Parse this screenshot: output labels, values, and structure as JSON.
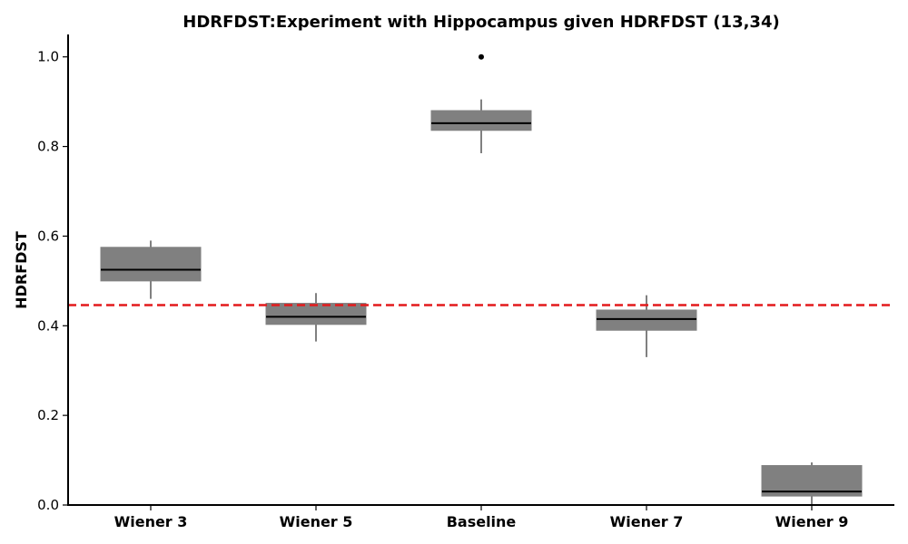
{
  "chart_data": {
    "type": "box",
    "title": "HDRFDST:Experiment with Hippocampus given HDRFDST (13,34)",
    "xlabel": "",
    "ylabel": "HDRFDST",
    "ylim": [
      0.0,
      1.05
    ],
    "yticks": [
      0.0,
      0.2,
      0.4,
      0.6,
      0.8,
      1.0
    ],
    "ytick_labels": [
      "0.0",
      "0.2",
      "0.4",
      "0.6",
      "0.8",
      "1.0"
    ],
    "categories": [
      "Wiener 3",
      "Wiener 5",
      "Baseline",
      "Wiener 7",
      "Wiener 9"
    ],
    "boxes": [
      {
        "whisker_low": 0.46,
        "q1": 0.5,
        "median": 0.525,
        "q3": 0.575,
        "whisker_high": 0.59,
        "outliers": []
      },
      {
        "whisker_low": 0.365,
        "q1": 0.403,
        "median": 0.42,
        "q3": 0.45,
        "whisker_high": 0.473,
        "outliers": []
      },
      {
        "whisker_low": 0.785,
        "q1": 0.836,
        "median": 0.852,
        "q3": 0.88,
        "whisker_high": 0.905,
        "outliers": [
          1.0
        ]
      },
      {
        "whisker_low": 0.33,
        "q1": 0.39,
        "median": 0.415,
        "q3": 0.435,
        "whisker_high": 0.468,
        "outliers": []
      },
      {
        "whisker_low": 0.0,
        "q1": 0.02,
        "median": 0.03,
        "q3": 0.088,
        "whisker_high": 0.095,
        "outliers": []
      }
    ],
    "reference_line": {
      "value": 0.446,
      "color": "#e31a1c",
      "style": "dashed"
    },
    "box_color": "#808080",
    "grid": false,
    "legend": "none"
  }
}
